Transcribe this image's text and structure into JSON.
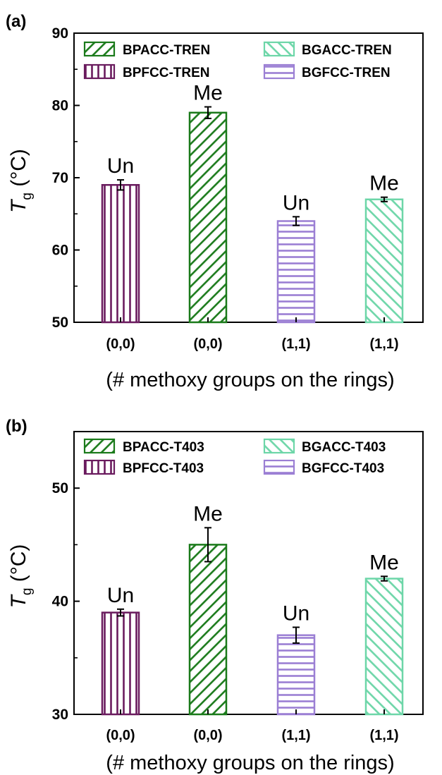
{
  "chart_data": [
    {
      "type": "bar",
      "panel": "(a)",
      "categories": [
        "(0,0)",
        "(0,0)",
        "(1,1)",
        "(1,1)"
      ],
      "xlabel": "(# methoxy groups on the rings)",
      "ylabel": "T",
      "ylabel_sub": "g",
      "ylabel_unit": " (°C)",
      "ylim": [
        50,
        90
      ],
      "yticks": [
        50,
        60,
        70,
        80,
        90
      ],
      "bars": [
        {
          "series": "BPFCC-TREN",
          "value": 69,
          "error": 0.7,
          "label": "Un",
          "color": "#6a1b5e",
          "pattern": "vertical"
        },
        {
          "series": "BPACC-TREN",
          "value": 79,
          "error": 0.8,
          "label": "Me",
          "color": "#1a7a1a",
          "pattern": "diag-right"
        },
        {
          "series": "BGFCC-TREN",
          "value": 64,
          "error": 0.6,
          "label": "Un",
          "color": "#9b7fd4",
          "pattern": "horizontal"
        },
        {
          "series": "BGACC-TREN",
          "value": 67,
          "error": 0.3,
          "label": "Me",
          "color": "#6dd6a8",
          "pattern": "diag-left"
        }
      ],
      "legend": [
        {
          "name": "BPACC-TREN",
          "color": "#1a7a1a",
          "pattern": "diag-right"
        },
        {
          "name": "BGACC-TREN",
          "color": "#6dd6a8",
          "pattern": "diag-left"
        },
        {
          "name": "BPFCC-TREN",
          "color": "#6a1b5e",
          "pattern": "vertical"
        },
        {
          "name": "BGFCC-TREN",
          "color": "#9b7fd4",
          "pattern": "horizontal"
        }
      ],
      "legend_position": "top"
    },
    {
      "type": "bar",
      "panel": "(b)",
      "categories": [
        "(0,0)",
        "(0,0)",
        "(1,1)",
        "(1,1)"
      ],
      "xlabel": "(# methoxy groups on the rings)",
      "ylabel": "T",
      "ylabel_sub": "g",
      "ylabel_unit": " (°C)",
      "ylim": [
        30,
        55
      ],
      "yticks": [
        30,
        40,
        50
      ],
      "bars": [
        {
          "series": "BPFCC-T403",
          "value": 39,
          "error": 0.3,
          "label": "Un",
          "color": "#6a1b5e",
          "pattern": "vertical"
        },
        {
          "series": "BPACC-T403",
          "value": 45,
          "error": 1.5,
          "label": "Me",
          "color": "#1a7a1a",
          "pattern": "diag-right"
        },
        {
          "series": "BGFCC-T403",
          "value": 37,
          "error": 0.7,
          "label": "Un",
          "color": "#9b7fd4",
          "pattern": "horizontal"
        },
        {
          "series": "BGACC-T403",
          "value": 42,
          "error": 0.2,
          "label": "Me",
          "color": "#6dd6a8",
          "pattern": "diag-left"
        }
      ],
      "legend": [
        {
          "name": "BPACC-T403",
          "color": "#1a7a1a",
          "pattern": "diag-right"
        },
        {
          "name": "BGACC-T403",
          "color": "#6dd6a8",
          "pattern": "diag-left"
        },
        {
          "name": "BPFCC-T403",
          "color": "#6a1b5e",
          "pattern": "vertical"
        },
        {
          "name": "BGFCC-T403",
          "color": "#9b7fd4",
          "pattern": "horizontal"
        }
      ],
      "legend_position": "top"
    }
  ]
}
